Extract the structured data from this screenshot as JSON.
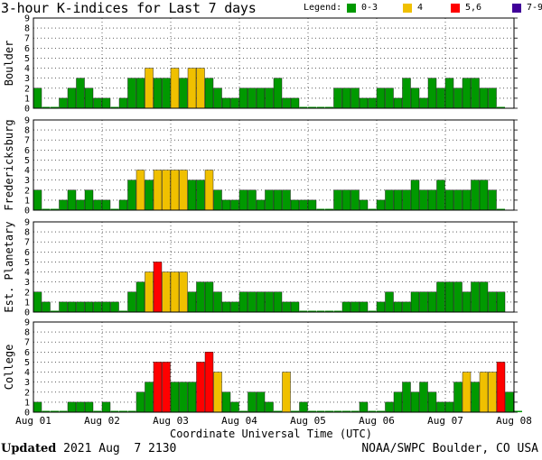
{
  "title": "3-hour K-indices for Last 7 days",
  "legend": {
    "label": "Legend:",
    "items": [
      {
        "label": "0-3",
        "color": "#009900"
      },
      {
        "label": "4",
        "color": "#f0c000"
      },
      {
        "label": "5,6",
        "color": "#ff0000"
      },
      {
        "label": "7-9",
        "color": "#400099"
      }
    ]
  },
  "footer": {
    "updated_label": "Updated",
    "updated_value": "2021 Aug  7 2130",
    "source": "NOAA/SWPC Boulder, CO USA"
  },
  "chart_data": {
    "type": "bar",
    "xlabel": "Coordinate Universal Time (UTC)",
    "x_ticks": [
      "Aug 01",
      "Aug 02",
      "Aug 03",
      "Aug 04",
      "Aug 05",
      "Aug 06",
      "Aug 07",
      "Aug 08"
    ],
    "y_ticks": [
      0,
      1,
      2,
      3,
      4,
      5,
      6,
      7,
      8,
      9
    ],
    "ylim": [
      0,
      9
    ],
    "interval_hours": 3,
    "color_scale": [
      {
        "range": "0-3",
        "color": "#009900"
      },
      {
        "range": "4",
        "color": "#f0c000"
      },
      {
        "range": "5,6",
        "color": "#ff0000"
      },
      {
        "range": "7-9",
        "color": "#400099"
      }
    ],
    "panels": [
      {
        "ylabel": "Boulder",
        "values": [
          2,
          0,
          0,
          1,
          2,
          3,
          2,
          1,
          1,
          0,
          1,
          3,
          3,
          4,
          3,
          3,
          4,
          3,
          4,
          4,
          3,
          2,
          1,
          1,
          2,
          2,
          2,
          2,
          3,
          1,
          1,
          0,
          0,
          0,
          0,
          2,
          2,
          2,
          1,
          1,
          2,
          2,
          1,
          3,
          2,
          1,
          3,
          2,
          3,
          2,
          3,
          3,
          2,
          2,
          0
        ]
      },
      {
        "ylabel": "Fredericksburg",
        "values": [
          2,
          0,
          0,
          1,
          2,
          1,
          2,
          1,
          1,
          0,
          1,
          3,
          4,
          3,
          4,
          4,
          4,
          4,
          3,
          3,
          4,
          2,
          1,
          1,
          2,
          2,
          1,
          2,
          2,
          2,
          1,
          1,
          1,
          0,
          0,
          2,
          2,
          2,
          1,
          0,
          1,
          2,
          2,
          2,
          3,
          2,
          2,
          3,
          2,
          2,
          2,
          3,
          3,
          2,
          0
        ]
      },
      {
        "ylabel": "Est. Planetary",
        "values": [
          2,
          1,
          0,
          1,
          1,
          1,
          1,
          1,
          1,
          1,
          0,
          2,
          3,
          4,
          5,
          4,
          4,
          4,
          2,
          3,
          3,
          2,
          1,
          1,
          2,
          2,
          2,
          2,
          2,
          1,
          1,
          0,
          0,
          0,
          0,
          0,
          1,
          1,
          1,
          0,
          1,
          2,
          1,
          1,
          2,
          2,
          2,
          3,
          3,
          3,
          2,
          3,
          3,
          2,
          2
        ]
      },
      {
        "ylabel": "College",
        "values": [
          1,
          0,
          0,
          0,
          1,
          1,
          1,
          0,
          1,
          0,
          0,
          0,
          2,
          3,
          5,
          5,
          3,
          3,
          3,
          5,
          6,
          4,
          2,
          1,
          0,
          2,
          2,
          1,
          0,
          4,
          0,
          1,
          0,
          0,
          0,
          0,
          0,
          0,
          1,
          0,
          0,
          1,
          2,
          3,
          2,
          3,
          2,
          1,
          1,
          3,
          4,
          3,
          4,
          4,
          5,
          2,
          0
        ]
      }
    ]
  }
}
